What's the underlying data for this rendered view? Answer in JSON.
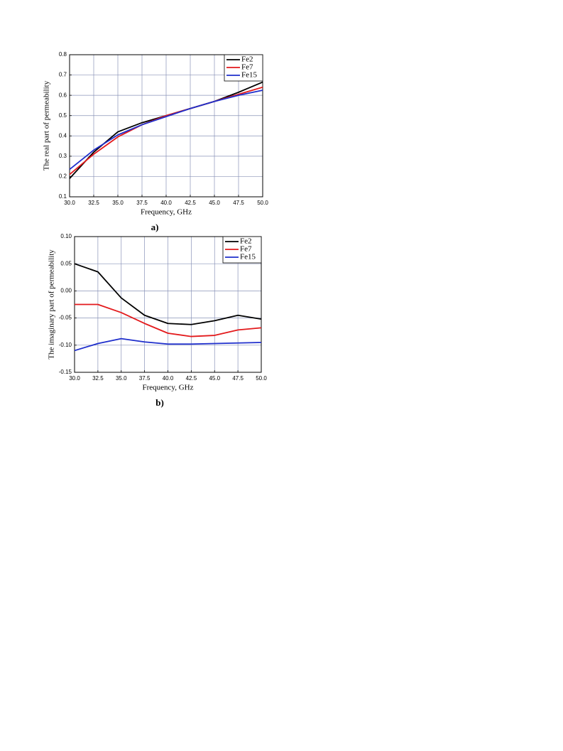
{
  "chart_data": [
    {
      "type": "line",
      "x_label": "Frequency, GHz",
      "y_label": "The real part of permeability",
      "caption": "a)",
      "x": [
        30,
        32.5,
        35,
        37.5,
        40,
        42.5,
        45,
        47.5,
        50
      ],
      "series": [
        {
          "name": "Fe2",
          "color": "#000000",
          "values": [
            0.19,
            0.32,
            0.42,
            0.465,
            0.5,
            0.535,
            0.57,
            0.615,
            0.665
          ]
        },
        {
          "name": "Fe7",
          "color": "#e31a1c",
          "values": [
            0.21,
            0.31,
            0.395,
            0.455,
            0.5,
            0.535,
            0.57,
            0.605,
            0.64
          ]
        },
        {
          "name": "Fe15",
          "color": "#1f2fcc",
          "values": [
            0.235,
            0.33,
            0.405,
            0.455,
            0.495,
            0.535,
            0.57,
            0.6,
            0.625
          ]
        }
      ],
      "xlim": [
        30,
        50
      ],
      "xticks": [
        {
          "value": 30,
          "label": "30.0"
        },
        {
          "value": 32.5,
          "label": "32.5"
        },
        {
          "value": 35,
          "label": "35.0"
        },
        {
          "value": 37.5,
          "label": "37.5"
        },
        {
          "value": 40,
          "label": "40.0"
        },
        {
          "value": 42.5,
          "label": "42.5"
        },
        {
          "value": 45,
          "label": "45.0"
        },
        {
          "value": 47.5,
          "label": "47.5"
        },
        {
          "value": 50,
          "label": "50.0"
        }
      ],
      "ylim": [
        0.1,
        0.8
      ],
      "yticks": [
        0.1,
        0.2,
        0.3,
        0.4,
        0.5,
        0.6,
        0.7,
        0.8
      ],
      "grid": true,
      "legend": "upper right"
    },
    {
      "type": "line",
      "x_label": "Frequency, GHz",
      "y_label": "The imaginary part of permeability",
      "caption": "b)",
      "x": [
        30,
        32.5,
        35,
        37.5,
        40,
        42.5,
        45,
        47.5,
        50
      ],
      "series": [
        {
          "name": "Fe2",
          "color": "#000000",
          "values": [
            0.05,
            0.035,
            -0.013,
            -0.045,
            -0.06,
            -0.062,
            -0.055,
            -0.045,
            -0.052
          ]
        },
        {
          "name": "Fe7",
          "color": "#e31a1c",
          "values": [
            -0.025,
            -0.025,
            -0.04,
            -0.06,
            -0.078,
            -0.084,
            -0.082,
            -0.072,
            -0.068
          ]
        },
        {
          "name": "Fe15",
          "color": "#1f2fcc",
          "values": [
            -0.11,
            -0.097,
            -0.088,
            -0.094,
            -0.098,
            -0.098,
            -0.097,
            -0.096,
            -0.095
          ]
        }
      ],
      "xlim": [
        30,
        50
      ],
      "xticks": [
        {
          "value": 30,
          "label": "30.0"
        },
        {
          "value": 32.5,
          "label": "32.5"
        },
        {
          "value": 35,
          "label": "35.0"
        },
        {
          "value": 37.5,
          "label": "37.5"
        },
        {
          "value": 40,
          "label": "40.0"
        },
        {
          "value": 42.5,
          "label": "42.5"
        },
        {
          "value": 45,
          "label": "45.0"
        },
        {
          "value": 47.5,
          "label": "47.5"
        },
        {
          "value": 50,
          "label": "50.0"
        }
      ],
      "ylim": [
        -0.15,
        0.1
      ],
      "yticks": [
        {
          "value": -0.15,
          "label": "-0.15"
        },
        {
          "value": -0.1,
          "label": "-0.10"
        },
        {
          "value": -0.05,
          "label": "-0.05"
        },
        {
          "value": 0,
          "label": "0.00"
        },
        {
          "value": 0.05,
          "label": "0.05"
        },
        {
          "value": 0.1,
          "label": "0.10"
        }
      ],
      "grid": true,
      "legend": "upper right"
    }
  ]
}
